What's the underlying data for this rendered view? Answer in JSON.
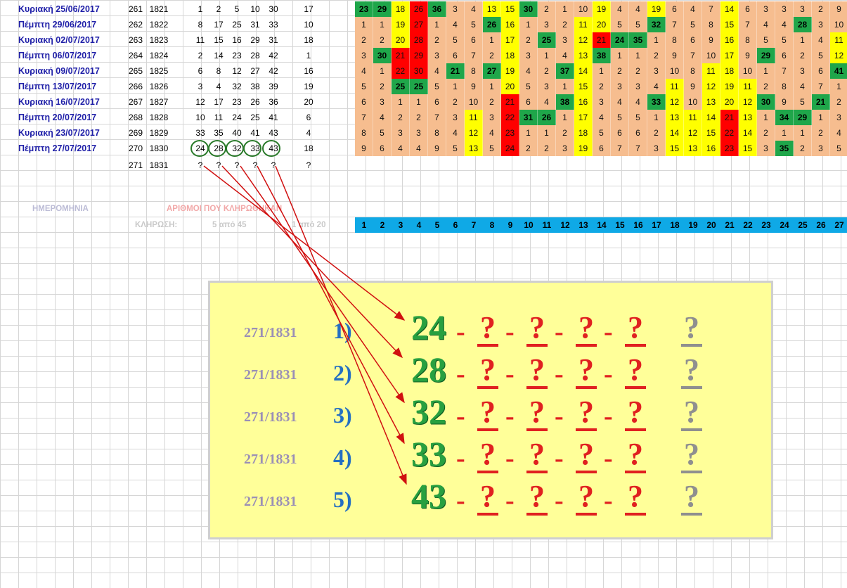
{
  "rows": [
    {
      "date": "Κυριακή 25/06/2017",
      "draw": "261",
      "id": "1821",
      "nums": [
        "1",
        "2",
        "5",
        "10",
        "30"
      ],
      "joker": "17",
      "heat": [
        [
          "23",
          "g"
        ],
        [
          "29",
          "g"
        ],
        [
          "18",
          "y"
        ],
        [
          "26",
          "r"
        ],
        [
          "36",
          "g"
        ],
        [
          "3",
          "o"
        ],
        [
          "4",
          "o"
        ],
        [
          "13",
          "y"
        ],
        [
          "15",
          "y"
        ],
        [
          "30",
          "g"
        ],
        [
          "2",
          "o"
        ],
        [
          "1",
          "o"
        ],
        [
          "10",
          "o"
        ],
        [
          "19",
          "y"
        ],
        [
          "4",
          "o"
        ],
        [
          "4",
          "o"
        ],
        [
          "19",
          "y"
        ],
        [
          "6",
          "o"
        ],
        [
          "4",
          "o"
        ],
        [
          "7",
          "o"
        ],
        [
          "14",
          "y"
        ],
        [
          "6",
          "o"
        ],
        [
          "3",
          "o"
        ],
        [
          "3",
          "o"
        ],
        [
          "3",
          "o"
        ],
        [
          "2",
          "o"
        ],
        [
          "9",
          "o"
        ]
      ]
    },
    {
      "date": "Πέμπτη 29/06/2017",
      "draw": "262",
      "id": "1822",
      "nums": [
        "8",
        "17",
        "25",
        "31",
        "33"
      ],
      "joker": "10",
      "heat": [
        [
          "1",
          "o"
        ],
        [
          "1",
          "o"
        ],
        [
          "19",
          "y"
        ],
        [
          "27",
          "r"
        ],
        [
          "1",
          "o"
        ],
        [
          "4",
          "o"
        ],
        [
          "5",
          "o"
        ],
        [
          "26",
          "g"
        ],
        [
          "16",
          "y"
        ],
        [
          "1",
          "o"
        ],
        [
          "3",
          "o"
        ],
        [
          "2",
          "o"
        ],
        [
          "11",
          "y"
        ],
        [
          "20",
          "y"
        ],
        [
          "5",
          "o"
        ],
        [
          "5",
          "o"
        ],
        [
          "32",
          "g"
        ],
        [
          "7",
          "o"
        ],
        [
          "5",
          "o"
        ],
        [
          "8",
          "o"
        ],
        [
          "15",
          "y"
        ],
        [
          "7",
          "o"
        ],
        [
          "4",
          "o"
        ],
        [
          "4",
          "o"
        ],
        [
          "28",
          "g"
        ],
        [
          "3",
          "o"
        ],
        [
          "10",
          "o"
        ]
      ]
    },
    {
      "date": "Κυριακή 02/07/2017",
      "draw": "263",
      "id": "1823",
      "nums": [
        "11",
        "15",
        "16",
        "29",
        "31"
      ],
      "joker": "18",
      "heat": [
        [
          "2",
          "o"
        ],
        [
          "2",
          "o"
        ],
        [
          "20",
          "y"
        ],
        [
          "28",
          "r"
        ],
        [
          "2",
          "o"
        ],
        [
          "5",
          "o"
        ],
        [
          "6",
          "o"
        ],
        [
          "1",
          "o"
        ],
        [
          "17",
          "y"
        ],
        [
          "2",
          "o"
        ],
        [
          "25",
          "g"
        ],
        [
          "3",
          "o"
        ],
        [
          "12",
          "y"
        ],
        [
          "21",
          "r"
        ],
        [
          "24",
          "g"
        ],
        [
          "35",
          "g"
        ],
        [
          "1",
          "o"
        ],
        [
          "8",
          "o"
        ],
        [
          "6",
          "o"
        ],
        [
          "9",
          "o"
        ],
        [
          "16",
          "y"
        ],
        [
          "8",
          "o"
        ],
        [
          "5",
          "o"
        ],
        [
          "5",
          "o"
        ],
        [
          "1",
          "o"
        ],
        [
          "4",
          "o"
        ],
        [
          "11",
          "y"
        ]
      ]
    },
    {
      "date": "Πέμπτη 06/07/2017",
      "draw": "264",
      "id": "1824",
      "nums": [
        "2",
        "14",
        "23",
        "28",
        "42"
      ],
      "joker": "1",
      "heat": [
        [
          "3",
          "o"
        ],
        [
          "30",
          "g"
        ],
        [
          "21",
          "r"
        ],
        [
          "29",
          "r"
        ],
        [
          "3",
          "o"
        ],
        [
          "6",
          "o"
        ],
        [
          "7",
          "o"
        ],
        [
          "2",
          "o"
        ],
        [
          "18",
          "y"
        ],
        [
          "3",
          "o"
        ],
        [
          "1",
          "o"
        ],
        [
          "4",
          "o"
        ],
        [
          "13",
          "y"
        ],
        [
          "38",
          "g"
        ],
        [
          "1",
          "o"
        ],
        [
          "1",
          "o"
        ],
        [
          "2",
          "o"
        ],
        [
          "9",
          "o"
        ],
        [
          "7",
          "o"
        ],
        [
          "10",
          "o"
        ],
        [
          "17",
          "y"
        ],
        [
          "9",
          "o"
        ],
        [
          "29",
          "g"
        ],
        [
          "6",
          "o"
        ],
        [
          "2",
          "o"
        ],
        [
          "5",
          "o"
        ],
        [
          "12",
          "y"
        ]
      ]
    },
    {
      "date": "Κυριακή 09/07/2017",
      "draw": "265",
      "id": "1825",
      "nums": [
        "6",
        "8",
        "12",
        "27",
        "42"
      ],
      "joker": "16",
      "heat": [
        [
          "4",
          "o"
        ],
        [
          "1",
          "o"
        ],
        [
          "22",
          "r"
        ],
        [
          "30",
          "r"
        ],
        [
          "4",
          "o"
        ],
        [
          "21",
          "g"
        ],
        [
          "8",
          "o"
        ],
        [
          "27",
          "g"
        ],
        [
          "19",
          "y"
        ],
        [
          "4",
          "o"
        ],
        [
          "2",
          "o"
        ],
        [
          "37",
          "g"
        ],
        [
          "14",
          "y"
        ],
        [
          "1",
          "o"
        ],
        [
          "2",
          "o"
        ],
        [
          "2",
          "o"
        ],
        [
          "3",
          "o"
        ],
        [
          "10",
          "o"
        ],
        [
          "8",
          "o"
        ],
        [
          "11",
          "y"
        ],
        [
          "18",
          "y"
        ],
        [
          "10",
          "o"
        ],
        [
          "1",
          "o"
        ],
        [
          "7",
          "o"
        ],
        [
          "3",
          "o"
        ],
        [
          "6",
          "o"
        ],
        [
          "41",
          "g"
        ]
      ]
    },
    {
      "date": "Πέμπτη 13/07/2017",
      "draw": "266",
      "id": "1826",
      "nums": [
        "3",
        "4",
        "32",
        "38",
        "39"
      ],
      "joker": "19",
      "heat": [
        [
          "5",
          "o"
        ],
        [
          "2",
          "o"
        ],
        [
          "25",
          "g"
        ],
        [
          "25",
          "g"
        ],
        [
          "5",
          "o"
        ],
        [
          "1",
          "o"
        ],
        [
          "9",
          "o"
        ],
        [
          "1",
          "o"
        ],
        [
          "20",
          "y"
        ],
        [
          "5",
          "o"
        ],
        [
          "3",
          "o"
        ],
        [
          "1",
          "o"
        ],
        [
          "15",
          "y"
        ],
        [
          "2",
          "o"
        ],
        [
          "3",
          "o"
        ],
        [
          "3",
          "o"
        ],
        [
          "4",
          "o"
        ],
        [
          "11",
          "y"
        ],
        [
          "9",
          "o"
        ],
        [
          "12",
          "y"
        ],
        [
          "19",
          "y"
        ],
        [
          "11",
          "y"
        ],
        [
          "2",
          "o"
        ],
        [
          "8",
          "o"
        ],
        [
          "4",
          "o"
        ],
        [
          "7",
          "o"
        ],
        [
          "1",
          "o"
        ]
      ]
    },
    {
      "date": "Κυριακή 16/07/2017",
      "draw": "267",
      "id": "1827",
      "nums": [
        "12",
        "17",
        "23",
        "26",
        "36"
      ],
      "joker": "20",
      "heat": [
        [
          "6",
          "o"
        ],
        [
          "3",
          "o"
        ],
        [
          "1",
          "o"
        ],
        [
          "1",
          "o"
        ],
        [
          "6",
          "o"
        ],
        [
          "2",
          "o"
        ],
        [
          "10",
          "o"
        ],
        [
          "2",
          "o"
        ],
        [
          "21",
          "r"
        ],
        [
          "6",
          "o"
        ],
        [
          "4",
          "o"
        ],
        [
          "38",
          "g"
        ],
        [
          "16",
          "y"
        ],
        [
          "3",
          "o"
        ],
        [
          "4",
          "o"
        ],
        [
          "4",
          "o"
        ],
        [
          "33",
          "g"
        ],
        [
          "12",
          "y"
        ],
        [
          "10",
          "o"
        ],
        [
          "13",
          "y"
        ],
        [
          "20",
          "y"
        ],
        [
          "12",
          "y"
        ],
        [
          "30",
          "g"
        ],
        [
          "9",
          "o"
        ],
        [
          "5",
          "o"
        ],
        [
          "21",
          "g"
        ],
        [
          "2",
          "o"
        ]
      ]
    },
    {
      "date": "Πέμπτη 20/07/2017",
      "draw": "268",
      "id": "1828",
      "nums": [
        "10",
        "11",
        "24",
        "25",
        "41"
      ],
      "joker": "6",
      "heat": [
        [
          "7",
          "o"
        ],
        [
          "4",
          "o"
        ],
        [
          "2",
          "o"
        ],
        [
          "2",
          "o"
        ],
        [
          "7",
          "o"
        ],
        [
          "3",
          "o"
        ],
        [
          "11",
          "y"
        ],
        [
          "3",
          "o"
        ],
        [
          "22",
          "r"
        ],
        [
          "31",
          "g"
        ],
        [
          "26",
          "g"
        ],
        [
          "1",
          "o"
        ],
        [
          "17",
          "y"
        ],
        [
          "4",
          "o"
        ],
        [
          "5",
          "o"
        ],
        [
          "5",
          "o"
        ],
        [
          "1",
          "o"
        ],
        [
          "13",
          "y"
        ],
        [
          "11",
          "y"
        ],
        [
          "14",
          "y"
        ],
        [
          "21",
          "r"
        ],
        [
          "13",
          "y"
        ],
        [
          "1",
          "o"
        ],
        [
          "34",
          "g"
        ],
        [
          "29",
          "g"
        ],
        [
          "1",
          "o"
        ],
        [
          "3",
          "o"
        ]
      ]
    },
    {
      "date": "Κυριακή 23/07/2017",
      "draw": "269",
      "id": "1829",
      "nums": [
        "33",
        "35",
        "40",
        "41",
        "43"
      ],
      "joker": "4",
      "heat": [
        [
          "8",
          "o"
        ],
        [
          "5",
          "o"
        ],
        [
          "3",
          "o"
        ],
        [
          "3",
          "o"
        ],
        [
          "8",
          "o"
        ],
        [
          "4",
          "o"
        ],
        [
          "12",
          "y"
        ],
        [
          "4",
          "o"
        ],
        [
          "23",
          "r"
        ],
        [
          "1",
          "o"
        ],
        [
          "1",
          "o"
        ],
        [
          "2",
          "o"
        ],
        [
          "18",
          "y"
        ],
        [
          "5",
          "o"
        ],
        [
          "6",
          "o"
        ],
        [
          "6",
          "o"
        ],
        [
          "2",
          "o"
        ],
        [
          "14",
          "y"
        ],
        [
          "12",
          "y"
        ],
        [
          "15",
          "y"
        ],
        [
          "22",
          "r"
        ],
        [
          "14",
          "y"
        ],
        [
          "2",
          "o"
        ],
        [
          "1",
          "o"
        ],
        [
          "1",
          "o"
        ],
        [
          "2",
          "o"
        ],
        [
          "4",
          "o"
        ]
      ]
    },
    {
      "date": "Πέμπτη 27/07/2017",
      "draw": "270",
      "id": "1830",
      "nums": [
        "24",
        "28",
        "32",
        "33",
        "43"
      ],
      "joker": "18",
      "heat": [
        [
          "9",
          "o"
        ],
        [
          "6",
          "o"
        ],
        [
          "4",
          "o"
        ],
        [
          "4",
          "o"
        ],
        [
          "9",
          "o"
        ],
        [
          "5",
          "o"
        ],
        [
          "13",
          "y"
        ],
        [
          "5",
          "o"
        ],
        [
          "24",
          "r"
        ],
        [
          "2",
          "o"
        ],
        [
          "2",
          "o"
        ],
        [
          "3",
          "o"
        ],
        [
          "19",
          "y"
        ],
        [
          "6",
          "o"
        ],
        [
          "7",
          "o"
        ],
        [
          "7",
          "o"
        ],
        [
          "3",
          "o"
        ],
        [
          "15",
          "y"
        ],
        [
          "13",
          "y"
        ],
        [
          "16",
          "y"
        ],
        [
          "23",
          "r"
        ],
        [
          "15",
          "y"
        ],
        [
          "3",
          "o"
        ],
        [
          "35",
          "g"
        ],
        [
          "2",
          "o"
        ],
        [
          "3",
          "o"
        ],
        [
          "5",
          "o"
        ]
      ]
    }
  ],
  "next_row": {
    "draw": "271",
    "id": "1831",
    "nums": [
      "?",
      "?",
      "?",
      "?",
      "?"
    ],
    "joker": "?"
  },
  "headers": {
    "date": "ΗΜΕΡΟΜΗΝΙΑ",
    "numbers": "ΑΡΙΘΜΟΙ ΠΟΥ ΚΛΗΡΩΘΗΚΑΝ",
    "draw": "ΚΛΗΡΩΣΗ:",
    "five_of": "5 από 45",
    "one_of": "1 από 20"
  },
  "columns": [
    "1",
    "2",
    "3",
    "4",
    "5",
    "6",
    "7",
    "8",
    "9",
    "10",
    "11",
    "12",
    "13",
    "14",
    "15",
    "16",
    "17",
    "18",
    "19",
    "20",
    "21",
    "22",
    "23",
    "24",
    "25",
    "26",
    "27"
  ],
  "panel": {
    "rows": [
      {
        "code": "271/1831",
        "idx": "1)",
        "first": "24",
        "q": [
          "?",
          "?",
          "?",
          "?"
        ],
        "joker": "?"
      },
      {
        "code": "271/1831",
        "idx": "2)",
        "first": "28",
        "q": [
          "?",
          "?",
          "?",
          "?"
        ],
        "joker": "?"
      },
      {
        "code": "271/1831",
        "idx": "3)",
        "first": "32",
        "q": [
          "?",
          "?",
          "?",
          "?"
        ],
        "joker": "?"
      },
      {
        "code": "271/1831",
        "idx": "4)",
        "first": "33",
        "q": [
          "?",
          "?",
          "?",
          "?"
        ],
        "joker": "?"
      },
      {
        "code": "271/1831",
        "idx": "5)",
        "first": "43",
        "q": [
          "?",
          "?",
          "?",
          "?"
        ],
        "joker": "?"
      }
    ],
    "dash": "-"
  },
  "colors": {
    "orange": "#f6bd8f",
    "yellow": "#ffff00",
    "red": "#ff0000",
    "green": "#1fa64a",
    "header_blue": "#0fa9e6",
    "panel": "#ffff99",
    "arrow": "#d01010",
    "circle": "#2a7a2a"
  }
}
